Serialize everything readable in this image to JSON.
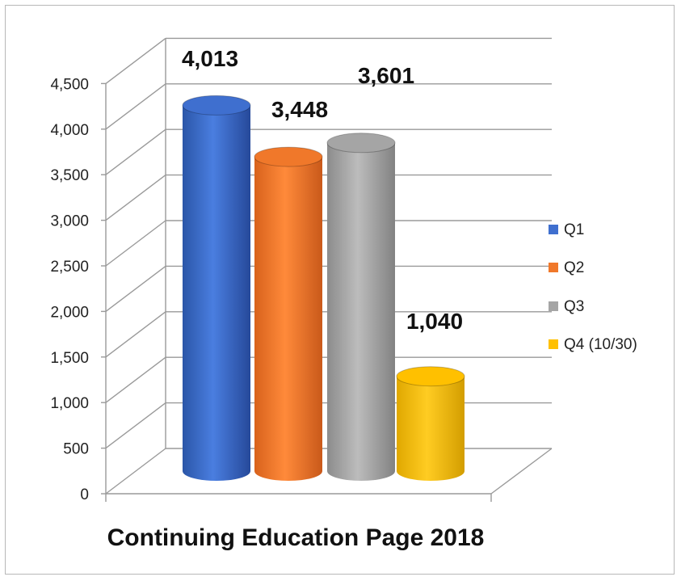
{
  "chart_data": {
    "type": "bar",
    "title": "Continuing Education Page 2018",
    "xlabel": "",
    "ylabel": "",
    "categories": [
      "Q1",
      "Q2",
      "Q3",
      "Q4 (10/30)"
    ],
    "values": [
      4013,
      3448,
      3601,
      1040
    ],
    "data_labels": [
      "4,013",
      "3,448",
      "3,601",
      "1,040"
    ],
    "ylim": [
      0,
      4500
    ],
    "yticks": [
      0,
      500,
      1000,
      1500,
      2000,
      2500,
      3000,
      3500,
      4000,
      4500
    ],
    "ytick_labels": [
      "0",
      "500",
      "1,000",
      "1,500",
      "2,000",
      "2,500",
      "3,000",
      "3,500",
      "4,000",
      "4,500"
    ],
    "grid": true,
    "legend_position": "right",
    "style": "3d-cylinder",
    "colors": [
      "#3f6fcf",
      "#f0782a",
      "#a5a5a5",
      "#ffc000"
    ]
  }
}
